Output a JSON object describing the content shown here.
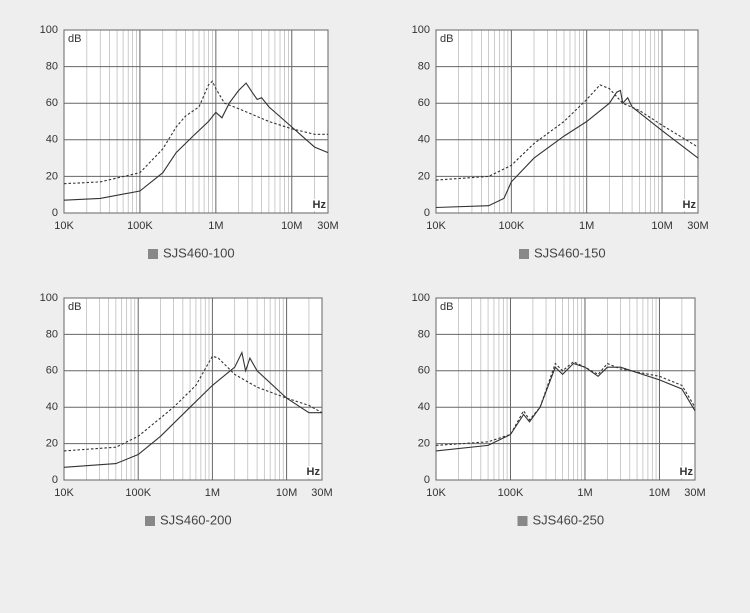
{
  "chart_data": [
    {
      "type": "line",
      "ylabel": "dB",
      "xlabel": "Hz",
      "caption": "SJS460-100",
      "xscale": "log",
      "grid": true,
      "xlim": [
        10000,
        30000000
      ],
      "ylim": [
        0,
        100
      ],
      "xticks": [
        {
          "value": 10000,
          "label": "10K"
        },
        {
          "value": 100000,
          "label": "100K"
        },
        {
          "value": 1000000,
          "label": "1M"
        },
        {
          "value": 10000000,
          "label": "10M"
        },
        {
          "value": 30000000,
          "label": "30M"
        }
      ],
      "yticks": [
        0,
        20,
        40,
        60,
        80,
        100
      ],
      "series": [
        {
          "color": "#333333",
          "style": "solid",
          "x": [
            10000,
            30000,
            100000,
            200000,
            300000,
            500000,
            800000,
            1000000,
            1200000,
            1500000,
            2000000,
            2500000,
            3000000,
            3500000,
            4000000,
            5000000,
            10000000,
            20000000,
            30000000
          ],
          "values": [
            7,
            8,
            12,
            22,
            33,
            42,
            50,
            55,
            52,
            60,
            67,
            71,
            66,
            62,
            63,
            58,
            47,
            36,
            33
          ]
        },
        {
          "color": "#333333",
          "style": "dashed",
          "x": [
            10000,
            30000,
            100000,
            200000,
            300000,
            400000,
            600000,
            800000,
            900000,
            1000000,
            1300000,
            2000000,
            5000000,
            10000000,
            20000000,
            30000000
          ],
          "values": [
            16,
            17,
            22,
            35,
            47,
            53,
            58,
            70,
            72,
            68,
            60,
            57,
            50,
            46,
            43,
            43
          ]
        }
      ]
    },
    {
      "type": "line",
      "ylabel": "dB",
      "xlabel": "Hz",
      "caption": "SJS460-150",
      "xscale": "log",
      "grid": true,
      "xlim": [
        10000,
        30000000
      ],
      "ylim": [
        0,
        100
      ],
      "xticks": [
        {
          "value": 10000,
          "label": "10K"
        },
        {
          "value": 100000,
          "label": "100K"
        },
        {
          "value": 1000000,
          "label": "1M"
        },
        {
          "value": 10000000,
          "label": "10M"
        },
        {
          "value": 30000000,
          "label": "30M"
        }
      ],
      "yticks": [
        0,
        20,
        40,
        60,
        80,
        100
      ],
      "series": [
        {
          "color": "#333333",
          "style": "solid",
          "x": [
            10000,
            50000,
            80000,
            100000,
            200000,
            500000,
            1000000,
            2000000,
            2500000,
            2800000,
            3000000,
            3500000,
            4000000,
            10000000,
            30000000
          ],
          "values": [
            3,
            4,
            8,
            17,
            30,
            42,
            50,
            60,
            66,
            67,
            60,
            63,
            58,
            45,
            30
          ]
        },
        {
          "color": "#333333",
          "style": "dashed",
          "x": [
            10000,
            50000,
            100000,
            200000,
            500000,
            1000000,
            1500000,
            2000000,
            3000000,
            5000000,
            10000000,
            30000000
          ],
          "values": [
            18,
            20,
            26,
            38,
            50,
            62,
            70,
            68,
            60,
            56,
            48,
            36
          ]
        }
      ]
    },
    {
      "type": "line",
      "ylabel": "dB",
      "xlabel": "Hz",
      "caption": "SJS460-200",
      "xscale": "log",
      "grid": true,
      "xlim": [
        10000,
        30000000
      ],
      "ylim": [
        0,
        100
      ],
      "xticks": [
        {
          "value": 10000,
          "label": "10K"
        },
        {
          "value": 100000,
          "label": "100K"
        },
        {
          "value": 1000000,
          "label": "1M"
        },
        {
          "value": 10000000,
          "label": "10M"
        },
        {
          "value": 30000000,
          "label": "30M"
        }
      ],
      "yticks": [
        0,
        20,
        40,
        60,
        80,
        100
      ],
      "series": [
        {
          "color": "#333333",
          "style": "solid",
          "x": [
            10000,
            50000,
            100000,
            200000,
            500000,
            1000000,
            2000000,
            2500000,
            2800000,
            3200000,
            4000000,
            10000000,
            20000000,
            30000000
          ],
          "values": [
            7,
            9,
            14,
            24,
            40,
            52,
            62,
            70,
            60,
            67,
            60,
            45,
            37,
            37
          ]
        },
        {
          "color": "#333333",
          "style": "dashed",
          "x": [
            10000,
            50000,
            100000,
            300000,
            600000,
            1000000,
            1200000,
            2000000,
            4000000,
            10000000,
            20000000,
            30000000
          ],
          "values": [
            16,
            18,
            24,
            40,
            52,
            68,
            67,
            58,
            51,
            45,
            41,
            37
          ]
        }
      ]
    },
    {
      "type": "line",
      "ylabel": "dB",
      "xlabel": "Hz",
      "caption": "SJS460-250",
      "xscale": "log",
      "grid": true,
      "xlim": [
        10000,
        30000000
      ],
      "ylim": [
        0,
        100
      ],
      "xticks": [
        {
          "value": 10000,
          "label": "10K"
        },
        {
          "value": 100000,
          "label": "100K"
        },
        {
          "value": 1000000,
          "label": "1M"
        },
        {
          "value": 10000000,
          "label": "10M"
        },
        {
          "value": 30000000,
          "label": "30M"
        }
      ],
      "yticks": [
        0,
        20,
        40,
        60,
        80,
        100
      ],
      "series": [
        {
          "color": "#333333",
          "style": "solid",
          "x": [
            10000,
            50000,
            100000,
            150000,
            180000,
            250000,
            400000,
            500000,
            700000,
            1000000,
            1500000,
            2000000,
            3000000,
            10000000,
            20000000,
            30000000
          ],
          "values": [
            16,
            19,
            25,
            36,
            32,
            40,
            62,
            58,
            64,
            62,
            57,
            62,
            62,
            55,
            50,
            38
          ]
        },
        {
          "color": "#333333",
          "style": "dashed",
          "x": [
            10000,
            50000,
            100000,
            150000,
            180000,
            250000,
            400000,
            500000,
            700000,
            1000000,
            1500000,
            2000000,
            3000000,
            10000000,
            20000000,
            30000000
          ],
          "values": [
            19,
            21,
            25,
            38,
            33,
            40,
            64,
            60,
            65,
            62,
            58,
            64,
            61,
            57,
            52,
            40
          ]
        }
      ]
    }
  ]
}
